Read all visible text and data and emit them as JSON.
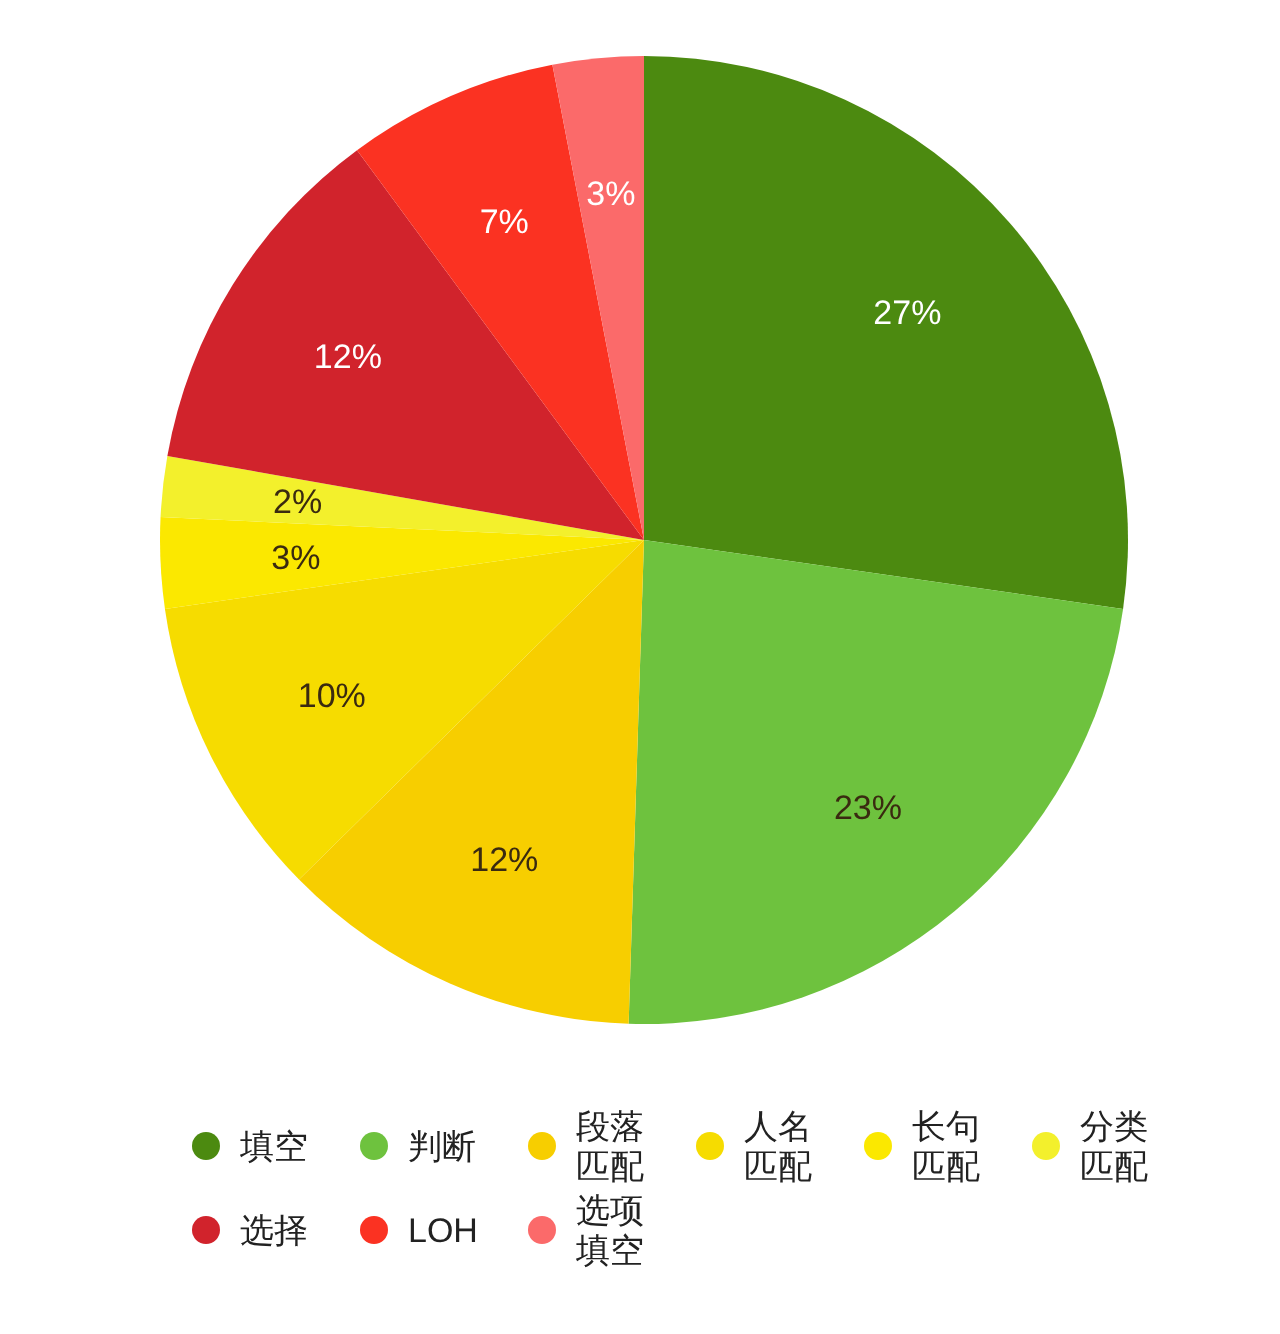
{
  "chart_data": {
    "type": "pie",
    "categories": [
      "填空",
      "判断",
      "段落匹配",
      "人名匹配",
      "长句匹配",
      "分类匹配",
      "选择",
      "LOH",
      "选项填空"
    ],
    "values": [
      27,
      23,
      12,
      10,
      3,
      2,
      12,
      7,
      3
    ],
    "value_labels": [
      "27%",
      "23%",
      "12%",
      "10%",
      "3%",
      "2%",
      "12%",
      "7%",
      "3%"
    ],
    "colors": [
      "#4c8a10",
      "#6ec23e",
      "#f7ce00",
      "#f6dc00",
      "#fbe800",
      "#f3f02c",
      "#d1232c",
      "#fb3222",
      "#fb6a6a"
    ],
    "legend": "bottom"
  }
}
